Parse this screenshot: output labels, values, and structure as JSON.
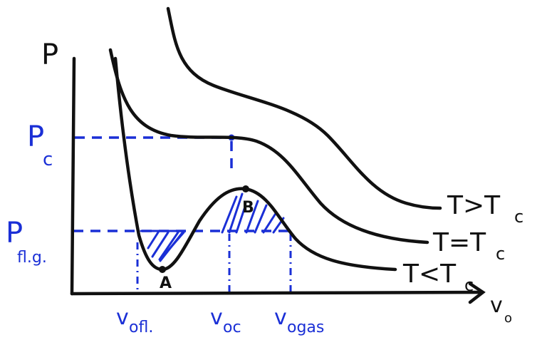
{
  "colors": {
    "ink": "#111111",
    "accent": "#1a2fd6",
    "paper": "#ffffff"
  },
  "axes": {
    "y_label": "P",
    "x_label": "v",
    "x_label_sub": "o"
  },
  "pressure_labels": {
    "critical": "P",
    "critical_sub": "c",
    "fl_g": "P",
    "fl_g_sub": "fl.g."
  },
  "volume_labels": {
    "liquid": "v",
    "liquid_sub": "ofl.",
    "critical": "v",
    "critical_sub": "oc",
    "gas": "v",
    "gas_sub": "ogas"
  },
  "points": {
    "a": "A",
    "b": "B"
  },
  "curves": {
    "above": "T>T",
    "above_sub": "c",
    "critical": "T=T",
    "critical_sub": "c",
    "below": "T<T",
    "below_sub": "c"
  }
}
